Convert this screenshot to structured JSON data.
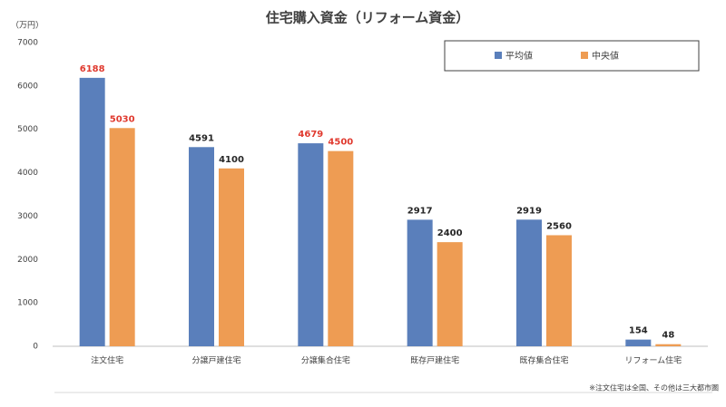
{
  "chart_data": {
    "type": "bar",
    "title": "住宅購入資金（リフォーム資金）",
    "y_unit": "（万円）",
    "note": "※注文住宅は全国、その他は三大都市圏",
    "categories": [
      "注文住宅",
      "分譲戸建住宅",
      "分譲集合住宅",
      "既存戸建住宅",
      "既存集合住宅",
      "リフォーム住宅"
    ],
    "series": [
      {
        "name": "平均値",
        "color": "#5a7fbb",
        "values": [
          6188,
          4591,
          4679,
          2917,
          2919,
          154
        ],
        "label_colors": [
          "#e03a2f",
          "#262626",
          "#e03a2f",
          "#262626",
          "#262626",
          "#262626"
        ]
      },
      {
        "name": "中央値",
        "color": "#ee9c53",
        "values": [
          5030,
          4100,
          4500,
          2400,
          2560,
          48
        ],
        "label_colors": [
          "#e03a2f",
          "#262626",
          "#e03a2f",
          "#262626",
          "#262626",
          "#262626"
        ]
      }
    ],
    "ylim": [
      0,
      7000
    ],
    "yticks": [
      0,
      1000,
      2000,
      3000,
      4000,
      5000,
      6000,
      7000
    ],
    "grid": false,
    "legend": "top-right"
  }
}
